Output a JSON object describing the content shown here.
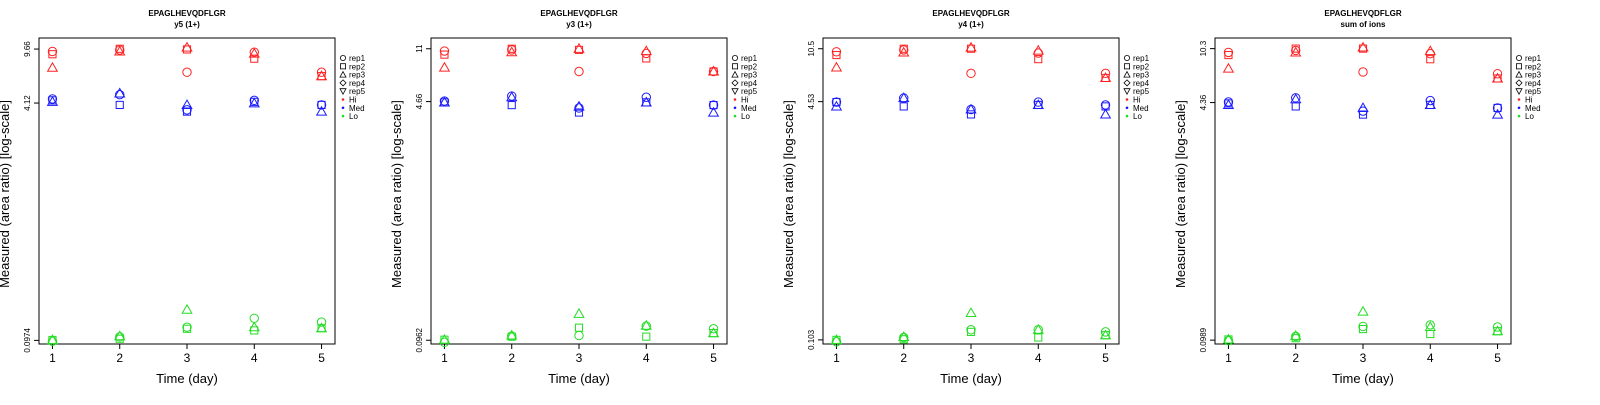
{
  "colors": {
    "Hi": "#ff2020",
    "Med": "#1a1aff",
    "Lo": "#22dd22"
  },
  "legend": {
    "rep_labels": [
      "rep1",
      "rep2",
      "rep3",
      "rep4",
      "rep5"
    ],
    "rep_shapes": [
      "circle",
      "square",
      "triangle-up",
      "diamond",
      "triangle-down"
    ],
    "level_labels": [
      "Hi",
      "Med",
      "Lo"
    ],
    "placement": "right"
  },
  "chart_data": [
    {
      "type": "scatter",
      "title": "EPAGLHEVQDFLGR",
      "subtitle": "y5 (1+)",
      "xlabel": "Time (day)",
      "ylabel": "Measured (area ratio) [log-scale]",
      "x_ticks": [
        "1",
        "2",
        "3",
        "4",
        "5"
      ],
      "y_ticks": [
        9.66,
        4.12,
        0.0974
      ],
      "y_tick_labels": [
        "9.66",
        "4.12",
        "0.0974"
      ],
      "y_scale": "log",
      "ylim": [
        0.092,
        11.5
      ],
      "xlim": [
        0.8,
        5.2
      ],
      "grid": false,
      "series": [
        {
          "level": "Hi",
          "rep": "rep1",
          "x": [
            1,
            2,
            3,
            4,
            5
          ],
          "y": [
            9.3,
            9.5,
            6.7,
            9.2,
            6.7
          ]
        },
        {
          "level": "Hi",
          "rep": "rep2",
          "x": [
            1,
            2,
            3,
            4,
            5
          ],
          "y": [
            8.9,
            9.7,
            9.6,
            8.3,
            6.3
          ]
        },
        {
          "level": "Hi",
          "rep": "rep3",
          "x": [
            1,
            2,
            3,
            4,
            5
          ],
          "y": [
            7.2,
            9.3,
            9.9,
            9.0,
            6.3
          ]
        },
        {
          "level": "Med",
          "rep": "rep1",
          "x": [
            1,
            2,
            3,
            4,
            5
          ],
          "y": [
            4.4,
            4.7,
            3.7,
            4.3,
            4.0
          ]
        },
        {
          "level": "Med",
          "rep": "rep2",
          "x": [
            1,
            2,
            3,
            4,
            5
          ],
          "y": [
            4.3,
            4.0,
            3.6,
            4.2,
            4.0
          ]
        },
        {
          "level": "Med",
          "rep": "rep3",
          "x": [
            1,
            2,
            3,
            4,
            5
          ],
          "y": [
            4.2,
            4.8,
            4.0,
            4.1,
            3.6
          ]
        },
        {
          "level": "Lo",
          "rep": "rep1",
          "x": [
            1,
            2,
            3,
            4,
            5
          ],
          "y": [
            0.096,
            0.103,
            0.12,
            0.138,
            0.13
          ]
        },
        {
          "level": "Lo",
          "rep": "rep2",
          "x": [
            1,
            2,
            3,
            4,
            5
          ],
          "y": [
            0.098,
            0.1,
            0.117,
            0.114,
            0.118
          ]
        },
        {
          "level": "Lo",
          "rep": "rep3",
          "x": [
            1,
            2,
            3,
            4,
            5
          ],
          "y": [
            0.098,
            0.104,
            0.158,
            0.12,
            0.118
          ]
        }
      ]
    },
    {
      "type": "scatter",
      "title": "EPAGLHEVQDFLGR",
      "subtitle": "y3 (1+)",
      "xlabel": "Time (day)",
      "ylabel": "Measured (area ratio) [log-scale]",
      "x_ticks": [
        "1",
        "2",
        "3",
        "4",
        "5"
      ],
      "y_ticks": [
        11,
        4.66,
        0.0962
      ],
      "y_tick_labels": [
        "11",
        "4.66",
        "0.0962"
      ],
      "y_scale": "log",
      "ylim": [
        0.0905,
        13.1
      ],
      "xlim": [
        0.8,
        5.2
      ],
      "grid": false,
      "series": [
        {
          "level": "Hi",
          "rep": "rep1",
          "x": [
            1,
            2,
            3,
            4,
            5
          ],
          "y": [
            10.6,
            10.8,
            7.6,
            10.2,
            7.6
          ]
        },
        {
          "level": "Hi",
          "rep": "rep2",
          "x": [
            1,
            2,
            3,
            4,
            5
          ],
          "y": [
            10.0,
            11.0,
            10.8,
            9.4,
            7.6
          ]
        },
        {
          "level": "Hi",
          "rep": "rep3",
          "x": [
            1,
            2,
            3,
            4,
            5
          ],
          "y": [
            8.1,
            10.4,
            11.0,
            10.6,
            7.6
          ]
        },
        {
          "level": "Med",
          "rep": "rep1",
          "x": [
            1,
            2,
            3,
            4,
            5
          ],
          "y": [
            4.7,
            5.1,
            4.2,
            5.0,
            4.4
          ]
        },
        {
          "level": "Med",
          "rep": "rep2",
          "x": [
            1,
            2,
            3,
            4,
            5
          ],
          "y": [
            4.6,
            4.4,
            3.9,
            4.6,
            4.4
          ]
        },
        {
          "level": "Med",
          "rep": "rep3",
          "x": [
            1,
            2,
            3,
            4,
            5
          ],
          "y": [
            4.6,
            5.0,
            4.3,
            4.6,
            3.9
          ]
        },
        {
          "level": "Lo",
          "rep": "rep1",
          "x": [
            1,
            2,
            3,
            4,
            5
          ],
          "y": [
            0.093,
            0.103,
            0.104,
            0.121,
            0.116
          ]
        },
        {
          "level": "Lo",
          "rep": "rep2",
          "x": [
            1,
            2,
            3,
            4,
            5
          ],
          "y": [
            0.097,
            0.102,
            0.118,
            0.102,
            0.108
          ]
        },
        {
          "level": "Lo",
          "rep": "rep3",
          "x": [
            1,
            2,
            3,
            4,
            5
          ],
          "y": [
            0.097,
            0.104,
            0.148,
            0.122,
            0.108
          ]
        }
      ]
    },
    {
      "type": "scatter",
      "title": "EPAGLHEVQDFLGR",
      "subtitle": "y4 (1+)",
      "xlabel": "Time (day)",
      "ylabel": "Measured (area ratio) [log-scale]",
      "x_ticks": [
        "1",
        "2",
        "3",
        "4",
        "5"
      ],
      "y_ticks": [
        10.5,
        4.53,
        0.103
      ],
      "y_tick_labels": [
        "10.5",
        "4.53",
        "0.103"
      ],
      "y_scale": "log",
      "ylim": [
        0.0965,
        12.45
      ],
      "xlim": [
        0.8,
        5.2
      ],
      "grid": false,
      "series": [
        {
          "level": "Hi",
          "rep": "rep1",
          "x": [
            1,
            2,
            3,
            4,
            5
          ],
          "y": [
            10.0,
            10.3,
            7.1,
            9.8,
            7.1
          ]
        },
        {
          "level": "Hi",
          "rep": "rep2",
          "x": [
            1,
            2,
            3,
            4,
            5
          ],
          "y": [
            9.5,
            10.5,
            10.5,
            8.9,
            6.6
          ]
        },
        {
          "level": "Hi",
          "rep": "rep3",
          "x": [
            1,
            2,
            3,
            4,
            5
          ],
          "y": [
            7.8,
            9.9,
            10.7,
            10.2,
            6.6
          ]
        },
        {
          "level": "Med",
          "rep": "rep1",
          "x": [
            1,
            2,
            3,
            4,
            5
          ],
          "y": [
            4.5,
            4.8,
            4.0,
            4.5,
            4.3
          ]
        },
        {
          "level": "Med",
          "rep": "rep2",
          "x": [
            1,
            2,
            3,
            4,
            5
          ],
          "y": [
            4.5,
            4.2,
            3.7,
            4.3,
            4.2
          ]
        },
        {
          "level": "Med",
          "rep": "rep3",
          "x": [
            1,
            2,
            3,
            4,
            5
          ],
          "y": [
            4.2,
            4.8,
            4.0,
            4.3,
            3.7
          ]
        },
        {
          "level": "Lo",
          "rep": "rep1",
          "x": [
            1,
            2,
            3,
            4,
            5
          ],
          "y": [
            0.1,
            0.107,
            0.121,
            0.121,
            0.117
          ]
        },
        {
          "level": "Lo",
          "rep": "rep2",
          "x": [
            1,
            2,
            3,
            4,
            5
          ],
          "y": [
            0.103,
            0.104,
            0.117,
            0.107,
            0.111
          ]
        },
        {
          "level": "Lo",
          "rep": "rep3",
          "x": [
            1,
            2,
            3,
            4,
            5
          ],
          "y": [
            0.103,
            0.108,
            0.158,
            0.121,
            0.111
          ]
        }
      ]
    },
    {
      "type": "scatter",
      "title": "EPAGLHEVQDFLGR",
      "subtitle": "sum of ions",
      "xlabel": "Time (day)",
      "ylabel": "Measured (area ratio) [log-scale]",
      "x_ticks": [
        "1",
        "2",
        "3",
        "4",
        "5"
      ],
      "y_ticks": [
        10.3,
        4.36,
        0.0989
      ],
      "y_tick_labels": [
        "10.3",
        "4.36",
        "0.0989"
      ],
      "y_scale": "log",
      "ylim": [
        0.093,
        12.2
      ],
      "xlim": [
        0.8,
        5.2
      ],
      "grid": false,
      "series": [
        {
          "level": "Hi",
          "rep": "rep1",
          "x": [
            1,
            2,
            3,
            4,
            5
          ],
          "y": [
            9.7,
            10.0,
            7.1,
            9.5,
            6.9
          ]
        },
        {
          "level": "Hi",
          "rep": "rep2",
          "x": [
            1,
            2,
            3,
            4,
            5
          ],
          "y": [
            9.3,
            10.3,
            10.3,
            8.7,
            6.4
          ]
        },
        {
          "level": "Hi",
          "rep": "rep3",
          "x": [
            1,
            2,
            3,
            4,
            5
          ],
          "y": [
            7.5,
            9.7,
            10.5,
            9.9,
            6.4
          ]
        },
        {
          "level": "Med",
          "rep": "rep1",
          "x": [
            1,
            2,
            3,
            4,
            5
          ],
          "y": [
            4.4,
            4.7,
            3.8,
            4.5,
            4.0
          ]
        },
        {
          "level": "Med",
          "rep": "rep2",
          "x": [
            1,
            2,
            3,
            4,
            5
          ],
          "y": [
            4.3,
            4.1,
            3.6,
            4.2,
            4.0
          ]
        },
        {
          "level": "Med",
          "rep": "rep3",
          "x": [
            1,
            2,
            3,
            4,
            5
          ],
          "y": [
            4.2,
            4.6,
            4.0,
            4.2,
            3.6
          ]
        },
        {
          "level": "Lo",
          "rep": "rep1",
          "x": [
            1,
            2,
            3,
            4,
            5
          ],
          "y": [
            0.098,
            0.105,
            0.123,
            0.126,
            0.122
          ]
        },
        {
          "level": "Lo",
          "rep": "rep2",
          "x": [
            1,
            2,
            3,
            4,
            5
          ],
          "y": [
            0.1,
            0.102,
            0.118,
            0.109,
            0.114
          ]
        },
        {
          "level": "Lo",
          "rep": "rep3",
          "x": [
            1,
            2,
            3,
            4,
            5
          ],
          "y": [
            0.1,
            0.106,
            0.156,
            0.122,
            0.114
          ]
        }
      ]
    }
  ]
}
